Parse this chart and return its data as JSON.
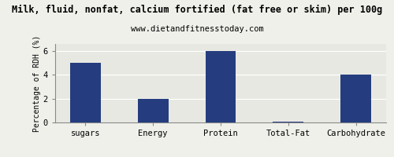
{
  "title": "Milk, fluid, nonfat, calcium fortified (fat free or skim) per 100g",
  "subtitle": "www.dietandfitnesstoday.com",
  "categories": [
    "sugars",
    "Energy",
    "Protein",
    "Total-Fat",
    "Carbohydrate"
  ],
  "values": [
    5.0,
    2.0,
    6.0,
    0.05,
    4.0
  ],
  "bar_color": "#253d7f",
  "ylabel": "Percentage of RDH (%)",
  "ylim": [
    0,
    6.6
  ],
  "yticks": [
    0,
    2,
    4,
    6
  ],
  "background_color": "#f0f0eb",
  "plot_bg_color": "#e8e8e3",
  "title_fontsize": 8.5,
  "subtitle_fontsize": 7.5,
  "ylabel_fontsize": 7,
  "tick_fontsize": 7.5,
  "grid_color": "#ffffff",
  "border_color": "#888888"
}
